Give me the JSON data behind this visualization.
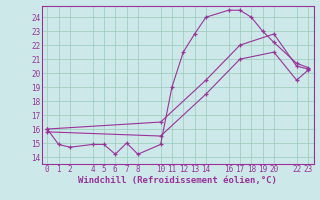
{
  "xlabel": "Windchill (Refroidissement éolien,°C)",
  "bg_color": "#cce8e8",
  "line_color": "#993399",
  "xlim": [
    -0.5,
    23.5
  ],
  "ylim": [
    13.5,
    24.8
  ],
  "xticks": [
    0,
    1,
    2,
    4,
    5,
    6,
    7,
    8,
    10,
    11,
    12,
    13,
    14,
    16,
    17,
    18,
    19,
    20,
    22,
    23
  ],
  "yticks": [
    14,
    15,
    16,
    17,
    18,
    19,
    20,
    21,
    22,
    23,
    24
  ],
  "line1_x": [
    0,
    1,
    2,
    4,
    5,
    6,
    7,
    8,
    10,
    11,
    12,
    13,
    14,
    16,
    17,
    18,
    19,
    20,
    22,
    23
  ],
  "line1_y": [
    16.0,
    14.9,
    14.7,
    14.9,
    14.9,
    14.2,
    15.0,
    14.2,
    14.9,
    19.0,
    21.5,
    22.8,
    24.0,
    24.5,
    24.5,
    24.0,
    23.0,
    22.2,
    20.7,
    20.4
  ],
  "line2_x": [
    0,
    10,
    14,
    17,
    20,
    22,
    23
  ],
  "line2_y": [
    16.0,
    16.5,
    19.5,
    22.0,
    22.8,
    20.5,
    20.3
  ],
  "line3_x": [
    0,
    10,
    14,
    17,
    20,
    22,
    23
  ],
  "line3_y": [
    15.8,
    15.5,
    18.5,
    21.0,
    21.5,
    19.5,
    20.2
  ],
  "grid_color": "#99ccbb",
  "tick_fontsize": 5.5,
  "xlabel_fontsize": 6.5
}
